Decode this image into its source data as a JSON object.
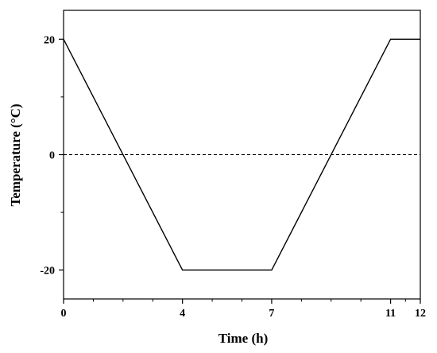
{
  "chart_data": {
    "type": "line",
    "title": "",
    "xlabel": "Time (h)",
    "ylabel": "Temperature (°C)",
    "xlim": [
      0,
      12
    ],
    "ylim": [
      -25,
      25
    ],
    "x_ticks": [
      {
        "value": 0,
        "label": "0"
      },
      {
        "value": 4,
        "label": "4"
      },
      {
        "value": 7,
        "label": "7"
      },
      {
        "value": 11,
        "label": "11"
      },
      {
        "value": 12,
        "label": "12"
      }
    ],
    "x_minor_ticks": [
      1,
      2,
      3,
      5,
      6,
      8,
      9,
      10,
      11.5
    ],
    "y_ticks": [
      {
        "value": -20,
        "label": "-20"
      },
      {
        "value": 0,
        "label": "0"
      },
      {
        "value": 20,
        "label": "20"
      }
    ],
    "y_minor_ticks": [
      -10,
      10
    ],
    "grid": false,
    "reference_line": {
      "y": 0,
      "style": "dashed"
    },
    "series": [
      {
        "x": [
          0,
          4,
          7,
          11,
          12
        ],
        "y": [
          20,
          -20,
          -20,
          20,
          20
        ],
        "color": "#000000"
      }
    ]
  }
}
